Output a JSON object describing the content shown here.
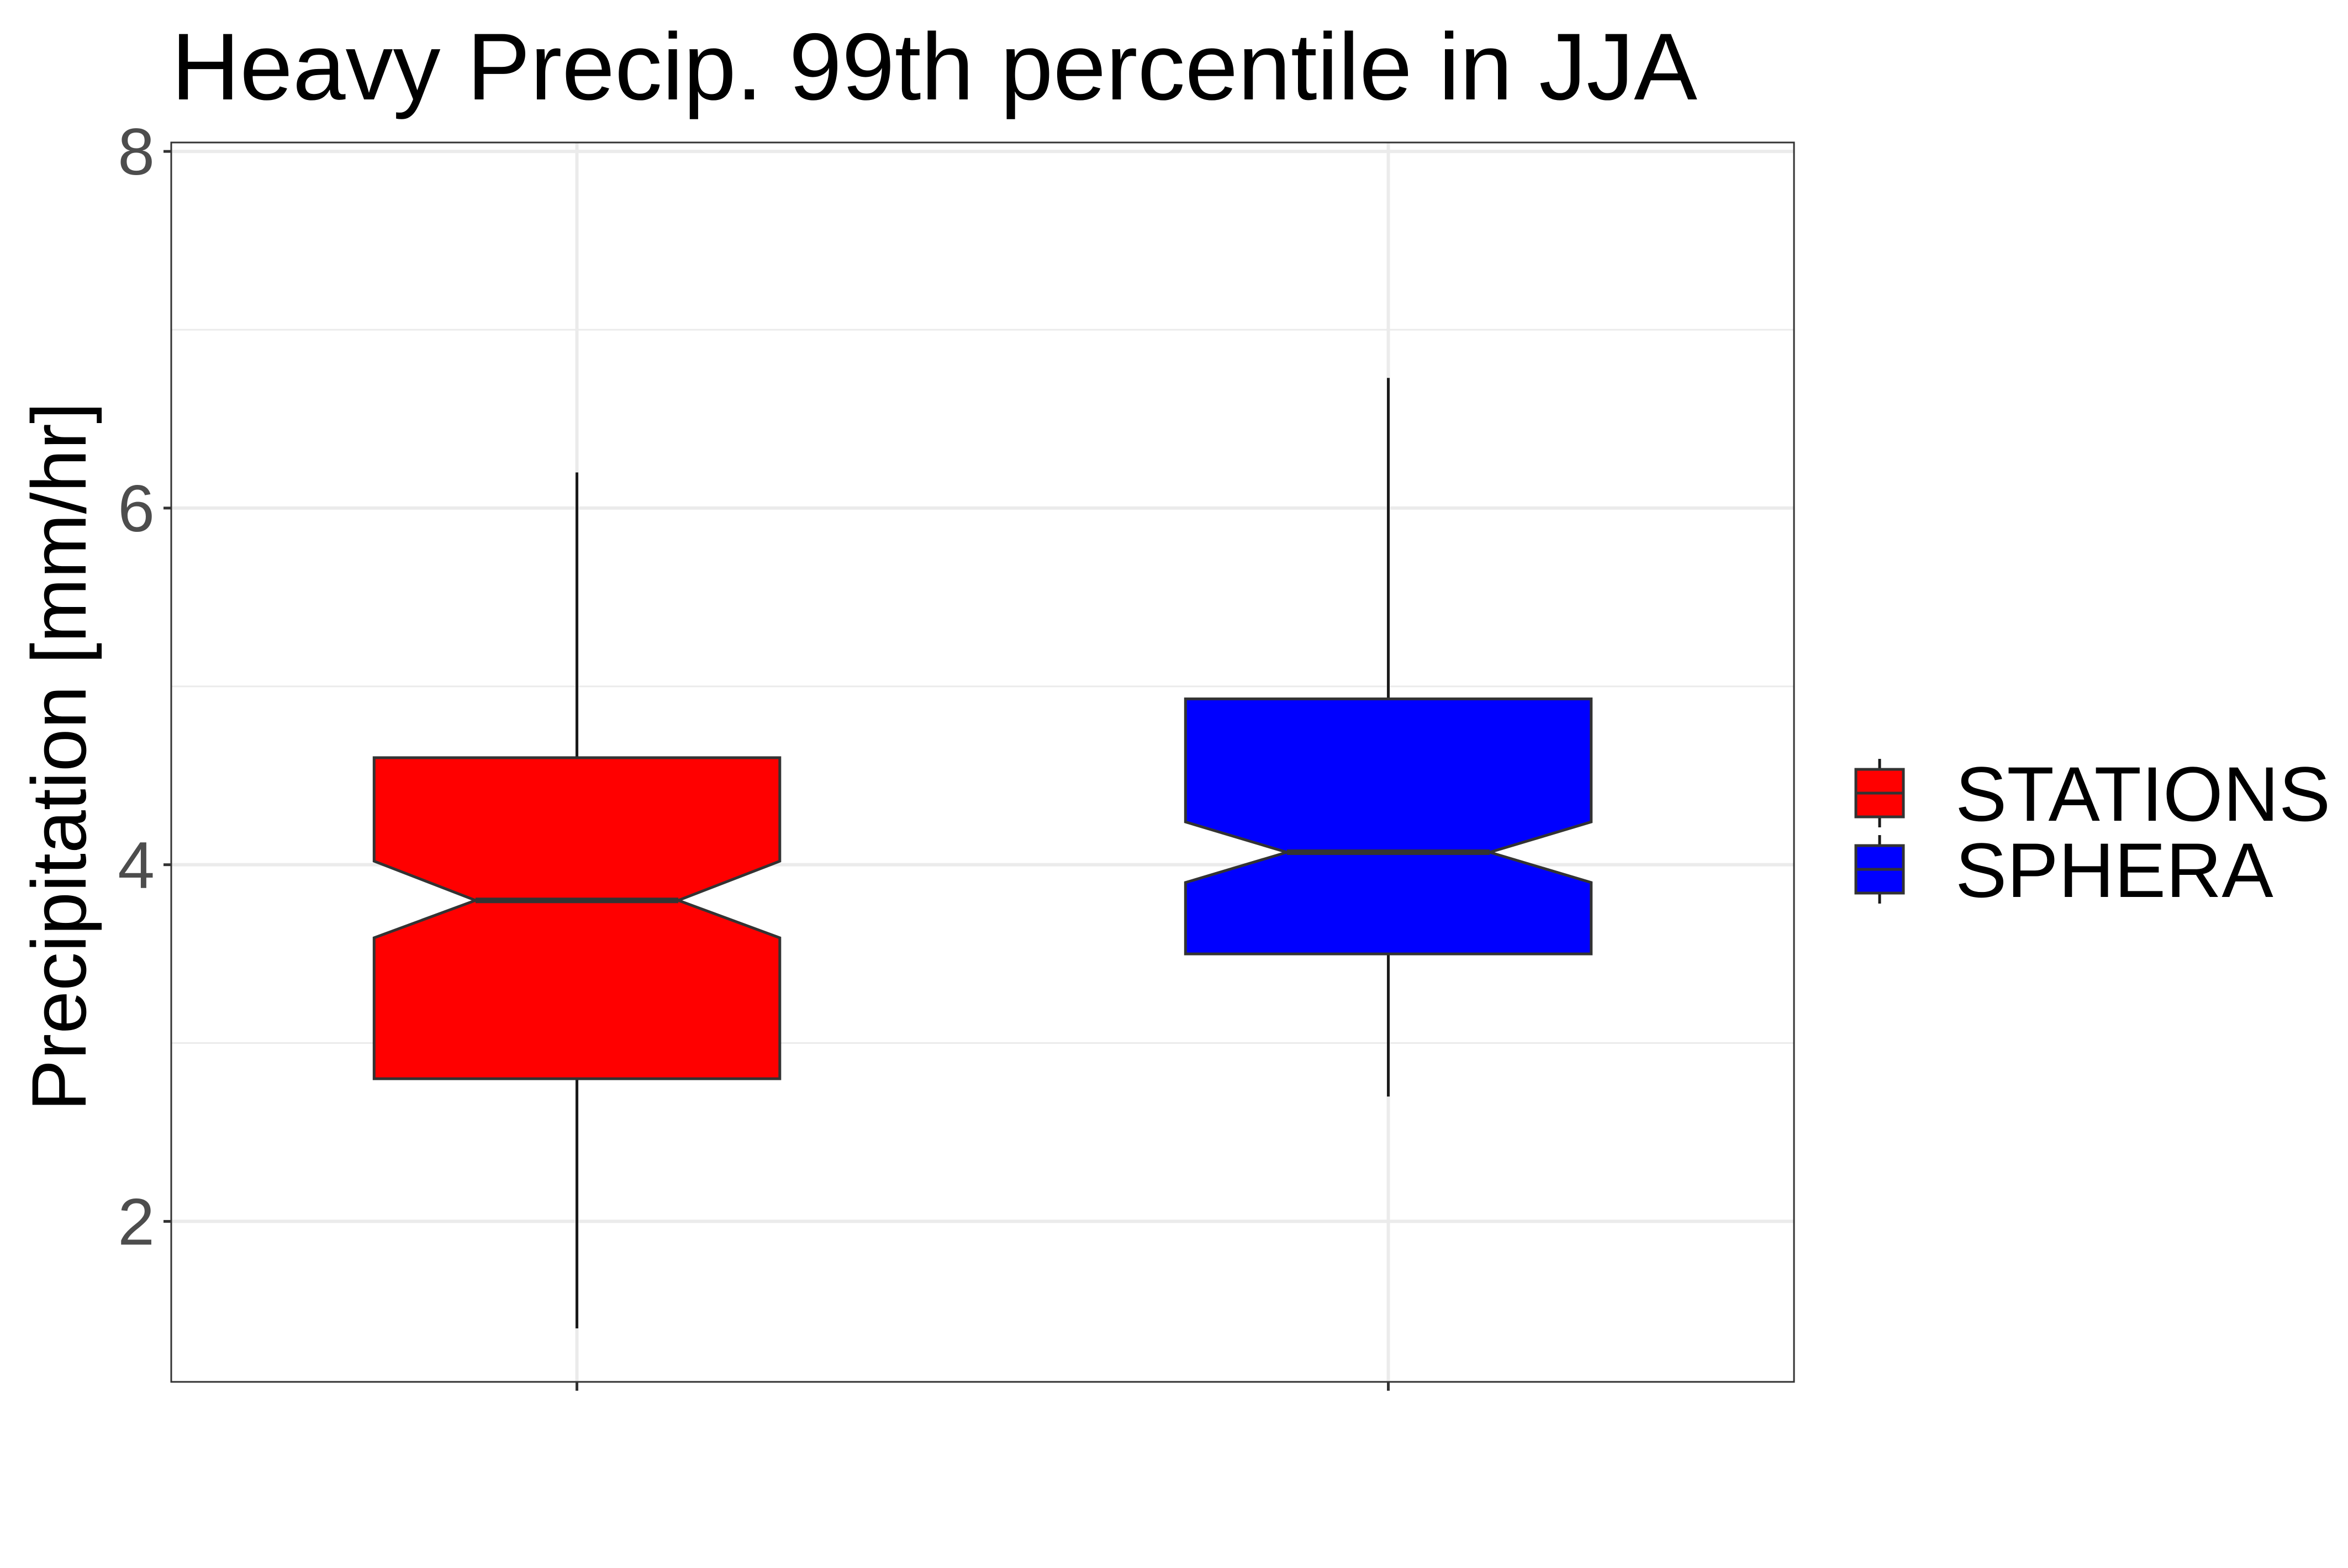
{
  "chart_data": {
    "type": "boxplot",
    "notched": true,
    "title": "Heavy Precip. 99th percentile in JJA",
    "xlabel": "",
    "ylabel": "Precipitation [mm/hr]",
    "ylim": [
      1.1,
      8.05
    ],
    "yticks": [
      2,
      4,
      6,
      8
    ],
    "ytick_labels": [
      "2",
      "4",
      "6",
      "8"
    ],
    "minor_yticks": [
      3,
      5,
      7
    ],
    "grid": true,
    "legend_position": "right",
    "series": [
      {
        "name": "STATIONS",
        "color": "#ff0000",
        "whisker_low": 1.4,
        "q1": 2.8,
        "median": 3.8,
        "q3": 4.6,
        "whisker_high": 6.2,
        "notch_low": 3.59,
        "notch_high": 4.02
      },
      {
        "name": "SPHERA",
        "color": "#0000ff",
        "whisker_low": 2.7,
        "q1": 3.5,
        "median": 4.07,
        "q3": 4.93,
        "whisker_high": 6.73,
        "notch_low": 3.9,
        "notch_high": 4.24
      }
    ]
  }
}
